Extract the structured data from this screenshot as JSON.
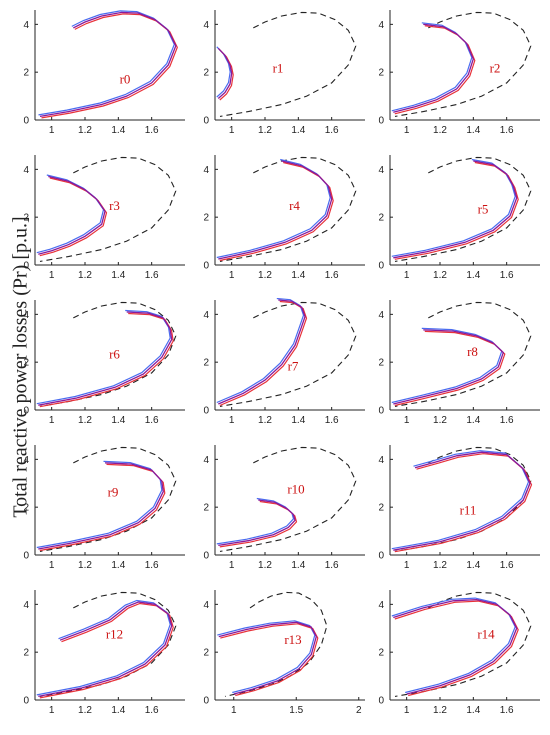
{
  "ylabel": "Total reactive power losses (Pr) [p.u.]",
  "colors": {
    "red": "#e8323a",
    "blue": "#4a6cf0",
    "purple": "#8a1a9a",
    "dashed": "#222222",
    "label": "#cc1111"
  },
  "chart_data": [
    {
      "type": "line",
      "label": "r0",
      "xticks": [
        "1",
        "1.2",
        "1.4",
        "1.6"
      ],
      "yticks": [
        "0",
        "2",
        "4"
      ],
      "xlim": [
        0.9,
        1.8
      ],
      "ylim": [
        0,
        4.6
      ],
      "curves": {
        "upper": [
          [
            1.13,
            3.85
          ],
          [
            1.2,
            4.1
          ],
          [
            1.3,
            4.35
          ],
          [
            1.42,
            4.5
          ],
          [
            1.52,
            4.47
          ],
          [
            1.62,
            4.2
          ],
          [
            1.7,
            3.75
          ],
          [
            1.745,
            3.1
          ]
        ],
        "lower": [
          [
            1.745,
            3.1
          ],
          [
            1.7,
            2.3
          ],
          [
            1.6,
            1.55
          ],
          [
            1.45,
            1.0
          ],
          [
            1.3,
            0.65
          ],
          [
            1.1,
            0.35
          ],
          [
            0.93,
            0.15
          ]
        ]
      }
    },
    {
      "type": "line",
      "label": "r1",
      "xticks": [
        "1",
        "1.2",
        "1.4",
        "1.6"
      ],
      "yticks": [
        "0",
        "2",
        "4"
      ],
      "xlim": [
        0.9,
        1.8
      ],
      "ylim": [
        0,
        4.6
      ],
      "curves": {
        "upper": [
          [
            0.92,
            3.0
          ],
          [
            0.96,
            2.7
          ],
          [
            0.99,
            2.3
          ],
          [
            1.0,
            1.95
          ]
        ],
        "lower": [
          [
            1.0,
            1.95
          ],
          [
            0.99,
            1.5
          ],
          [
            0.96,
            1.15
          ],
          [
            0.92,
            0.9
          ]
        ]
      }
    },
    {
      "type": "line",
      "label": "r2",
      "xticks": [
        "1",
        "1.2",
        "1.4",
        "1.6"
      ],
      "yticks": [
        "0",
        "2",
        "4"
      ],
      "xlim": [
        0.9,
        1.8
      ],
      "ylim": [
        0,
        4.6
      ],
      "curves": {
        "upper": [
          [
            1.1,
            4.0
          ],
          [
            1.22,
            3.9
          ],
          [
            1.3,
            3.6
          ],
          [
            1.36,
            3.2
          ],
          [
            1.4,
            2.55
          ]
        ],
        "lower": [
          [
            1.4,
            2.55
          ],
          [
            1.37,
            1.9
          ],
          [
            1.3,
            1.3
          ],
          [
            1.18,
            0.85
          ],
          [
            1.05,
            0.55
          ],
          [
            0.92,
            0.32
          ]
        ]
      }
    },
    {
      "type": "line",
      "label": "r3",
      "xticks": [
        "1",
        "1.2",
        "1.4",
        "1.6"
      ],
      "yticks": [
        "0",
        "2",
        "4"
      ],
      "xlim": [
        0.9,
        1.8
      ],
      "ylim": [
        0,
        4.6
      ],
      "curves": {
        "upper": [
          [
            0.98,
            3.7
          ],
          [
            1.1,
            3.5
          ],
          [
            1.2,
            3.15
          ],
          [
            1.27,
            2.75
          ],
          [
            1.32,
            2.25
          ]
        ],
        "lower": [
          [
            1.32,
            2.25
          ],
          [
            1.3,
            1.7
          ],
          [
            1.2,
            1.2
          ],
          [
            1.1,
            0.85
          ],
          [
            1.0,
            0.6
          ],
          [
            0.92,
            0.45
          ]
        ]
      }
    },
    {
      "type": "line",
      "label": "r4",
      "xticks": [
        "1",
        "1.2",
        "1.4",
        "1.6"
      ],
      "yticks": [
        "0",
        "2",
        "4"
      ],
      "xlim": [
        0.9,
        1.8
      ],
      "ylim": [
        0,
        4.6
      ],
      "curves": {
        "upper": [
          [
            1.3,
            4.35
          ],
          [
            1.42,
            4.15
          ],
          [
            1.52,
            3.75
          ],
          [
            1.58,
            3.3
          ],
          [
            1.6,
            2.75
          ]
        ],
        "lower": [
          [
            1.6,
            2.75
          ],
          [
            1.57,
            2.05
          ],
          [
            1.48,
            1.45
          ],
          [
            1.32,
            0.95
          ],
          [
            1.12,
            0.55
          ],
          [
            0.92,
            0.25
          ]
        ]
      }
    },
    {
      "type": "line",
      "label": "r5",
      "xticks": [
        "1",
        "1.2",
        "1.4",
        "1.6"
      ],
      "yticks": [
        "0",
        "2",
        "4"
      ],
      "xlim": [
        0.9,
        1.8
      ],
      "ylim": [
        0,
        4.6
      ],
      "curves": {
        "upper": [
          [
            1.4,
            4.35
          ],
          [
            1.52,
            4.2
          ],
          [
            1.6,
            3.8
          ],
          [
            1.64,
            3.3
          ],
          [
            1.66,
            2.8
          ]
        ],
        "lower": [
          [
            1.66,
            2.8
          ],
          [
            1.62,
            2.05
          ],
          [
            1.52,
            1.45
          ],
          [
            1.35,
            0.95
          ],
          [
            1.12,
            0.55
          ],
          [
            0.92,
            0.3
          ]
        ]
      }
    },
    {
      "type": "line",
      "label": "r6",
      "xticks": [
        "1",
        "1.2",
        "1.4",
        "1.6"
      ],
      "yticks": [
        "0",
        "2",
        "4"
      ],
      "xlim": [
        0.9,
        1.8
      ],
      "ylim": [
        0,
        4.6
      ],
      "curves": {
        "upper": [
          [
            1.45,
            4.1
          ],
          [
            1.58,
            4.05
          ],
          [
            1.67,
            3.85
          ],
          [
            1.71,
            3.4
          ],
          [
            1.72,
            2.95
          ]
        ],
        "lower": [
          [
            1.72,
            2.95
          ],
          [
            1.66,
            2.2
          ],
          [
            1.55,
            1.5
          ],
          [
            1.38,
            0.95
          ],
          [
            1.15,
            0.5
          ],
          [
            0.92,
            0.2
          ]
        ]
      }
    },
    {
      "type": "line",
      "label": "r7",
      "xticks": [
        "1",
        "1.2",
        "1.4",
        "1.6"
      ],
      "yticks": [
        "0",
        "2",
        "4"
      ],
      "xlim": [
        0.9,
        1.8
      ],
      "ylim": [
        0,
        4.6
      ],
      "curves": {
        "upper": [
          [
            1.28,
            4.6
          ],
          [
            1.36,
            4.55
          ],
          [
            1.42,
            4.3
          ],
          [
            1.44,
            3.9
          ],
          [
            1.42,
            3.5
          ]
        ],
        "lower": [
          [
            1.42,
            3.5
          ],
          [
            1.38,
            2.7
          ],
          [
            1.3,
            1.9
          ],
          [
            1.2,
            1.25
          ],
          [
            1.07,
            0.7
          ],
          [
            0.92,
            0.25
          ]
        ]
      }
    },
    {
      "type": "line",
      "label": "r8",
      "xticks": [
        "1",
        "1.2",
        "1.4",
        "1.6"
      ],
      "yticks": [
        "0",
        "2",
        "4"
      ],
      "xlim": [
        0.9,
        1.8
      ],
      "ylim": [
        0,
        4.6
      ],
      "curves": {
        "upper": [
          [
            1.1,
            3.35
          ],
          [
            1.28,
            3.3
          ],
          [
            1.42,
            3.1
          ],
          [
            1.52,
            2.8
          ],
          [
            1.58,
            2.4
          ]
        ],
        "lower": [
          [
            1.58,
            2.4
          ],
          [
            1.55,
            1.8
          ],
          [
            1.45,
            1.3
          ],
          [
            1.3,
            0.9
          ],
          [
            1.1,
            0.55
          ],
          [
            0.92,
            0.25
          ]
        ]
      }
    },
    {
      "type": "line",
      "label": "r9",
      "xticks": [
        "1",
        "1.2",
        "1.4",
        "1.6"
      ],
      "yticks": [
        "0",
        "2",
        "4"
      ],
      "xlim": [
        0.9,
        1.8
      ],
      "ylim": [
        0,
        4.6
      ],
      "curves": {
        "upper": [
          [
            1.32,
            3.85
          ],
          [
            1.48,
            3.8
          ],
          [
            1.6,
            3.55
          ],
          [
            1.66,
            3.1
          ],
          [
            1.67,
            2.65
          ]
        ],
        "lower": [
          [
            1.67,
            2.65
          ],
          [
            1.62,
            1.95
          ],
          [
            1.52,
            1.35
          ],
          [
            1.35,
            0.85
          ],
          [
            1.12,
            0.5
          ],
          [
            0.92,
            0.25
          ]
        ]
      }
    },
    {
      "type": "line",
      "label": "r10",
      "xticks": [
        "1",
        "1.2",
        "1.4",
        "1.6"
      ],
      "yticks": [
        "0",
        "2",
        "4"
      ],
      "xlim": [
        0.9,
        1.8
      ],
      "ylim": [
        0,
        4.6
      ],
      "curves": {
        "upper": [
          [
            1.16,
            2.3
          ],
          [
            1.26,
            2.2
          ],
          [
            1.33,
            1.95
          ],
          [
            1.37,
            1.7
          ],
          [
            1.38,
            1.45
          ]
        ],
        "lower": [
          [
            1.38,
            1.45
          ],
          [
            1.34,
            1.15
          ],
          [
            1.25,
            0.85
          ],
          [
            1.1,
            0.6
          ],
          [
            0.92,
            0.4
          ]
        ]
      }
    },
    {
      "type": "line",
      "label": "r11",
      "xticks": [
        "1",
        "1.2",
        "1.4",
        "1.6"
      ],
      "yticks": [
        "0",
        "2",
        "4"
      ],
      "xlim": [
        0.9,
        1.8
      ],
      "ylim": [
        0,
        4.6
      ],
      "curves": {
        "upper": [
          [
            1.05,
            3.65
          ],
          [
            1.18,
            3.9
          ],
          [
            1.3,
            4.15
          ],
          [
            1.45,
            4.3
          ],
          [
            1.6,
            4.2
          ],
          [
            1.7,
            3.6
          ],
          [
            1.74,
            3.0
          ]
        ],
        "lower": [
          [
            1.74,
            3.0
          ],
          [
            1.7,
            2.3
          ],
          [
            1.58,
            1.55
          ],
          [
            1.42,
            1.0
          ],
          [
            1.2,
            0.55
          ],
          [
            0.92,
            0.2
          ]
        ]
      }
    },
    {
      "type": "line",
      "label": "r12",
      "xticks": [
        "1",
        "1.2",
        "1.4",
        "1.6"
      ],
      "yticks": [
        "0",
        "2",
        "4"
      ],
      "xlim": [
        0.9,
        1.8
      ],
      "ylim": [
        0,
        4.6
      ],
      "curves": {
        "upper": [
          [
            1.05,
            2.5
          ],
          [
            1.2,
            2.9
          ],
          [
            1.35,
            3.35
          ],
          [
            1.45,
            3.9
          ],
          [
            1.52,
            4.1
          ],
          [
            1.62,
            4.0
          ],
          [
            1.7,
            3.6
          ],
          [
            1.72,
            3.1
          ]
        ],
        "lower": [
          [
            1.72,
            3.1
          ],
          [
            1.68,
            2.3
          ],
          [
            1.56,
            1.5
          ],
          [
            1.4,
            0.95
          ],
          [
            1.18,
            0.5
          ],
          [
            0.92,
            0.15
          ]
        ]
      }
    },
    {
      "type": "line",
      "label": "r13",
      "xticks": [
        "1",
        "1.5",
        "2"
      ],
      "yticks": [
        "0",
        "2",
        "4"
      ],
      "xlim": [
        0.85,
        2.05
      ],
      "ylim": [
        0,
        4.6
      ],
      "curves": {
        "upper": [
          [
            0.88,
            2.65
          ],
          [
            1.1,
            2.95
          ],
          [
            1.3,
            3.15
          ],
          [
            1.5,
            3.25
          ],
          [
            1.62,
            3.05
          ],
          [
            1.66,
            2.65
          ]
        ],
        "lower": [
          [
            1.66,
            2.65
          ],
          [
            1.62,
            1.9
          ],
          [
            1.52,
            1.3
          ],
          [
            1.35,
            0.8
          ],
          [
            1.15,
            0.45
          ],
          [
            1.0,
            0.25
          ]
        ]
      }
    },
    {
      "type": "line",
      "label": "r14",
      "xticks": [
        "1",
        "1.2",
        "1.4",
        "1.6"
      ],
      "yticks": [
        "0",
        "2",
        "4"
      ],
      "xlim": [
        0.9,
        1.8
      ],
      "ylim": [
        0,
        4.6
      ],
      "curves": {
        "upper": [
          [
            0.92,
            3.45
          ],
          [
            1.1,
            3.85
          ],
          [
            1.28,
            4.15
          ],
          [
            1.42,
            4.2
          ],
          [
            1.54,
            4.0
          ],
          [
            1.62,
            3.55
          ],
          [
            1.66,
            3.0
          ]
        ],
        "lower": [
          [
            1.66,
            3.0
          ],
          [
            1.62,
            2.3
          ],
          [
            1.52,
            1.6
          ],
          [
            1.38,
            1.05
          ],
          [
            1.2,
            0.6
          ],
          [
            1.0,
            0.25
          ]
        ]
      }
    }
  ],
  "reference_curve": {
    "upper": [
      [
        1.13,
        3.85
      ],
      [
        1.2,
        4.1
      ],
      [
        1.3,
        4.35
      ],
      [
        1.42,
        4.5
      ],
      [
        1.52,
        4.47
      ],
      [
        1.62,
        4.2
      ],
      [
        1.7,
        3.75
      ],
      [
        1.745,
        3.1
      ]
    ],
    "lower": [
      [
        1.745,
        3.1
      ],
      [
        1.7,
        2.3
      ],
      [
        1.6,
        1.55
      ],
      [
        1.45,
        1.0
      ],
      [
        1.3,
        0.65
      ],
      [
        1.1,
        0.35
      ],
      [
        0.93,
        0.15
      ]
    ]
  }
}
